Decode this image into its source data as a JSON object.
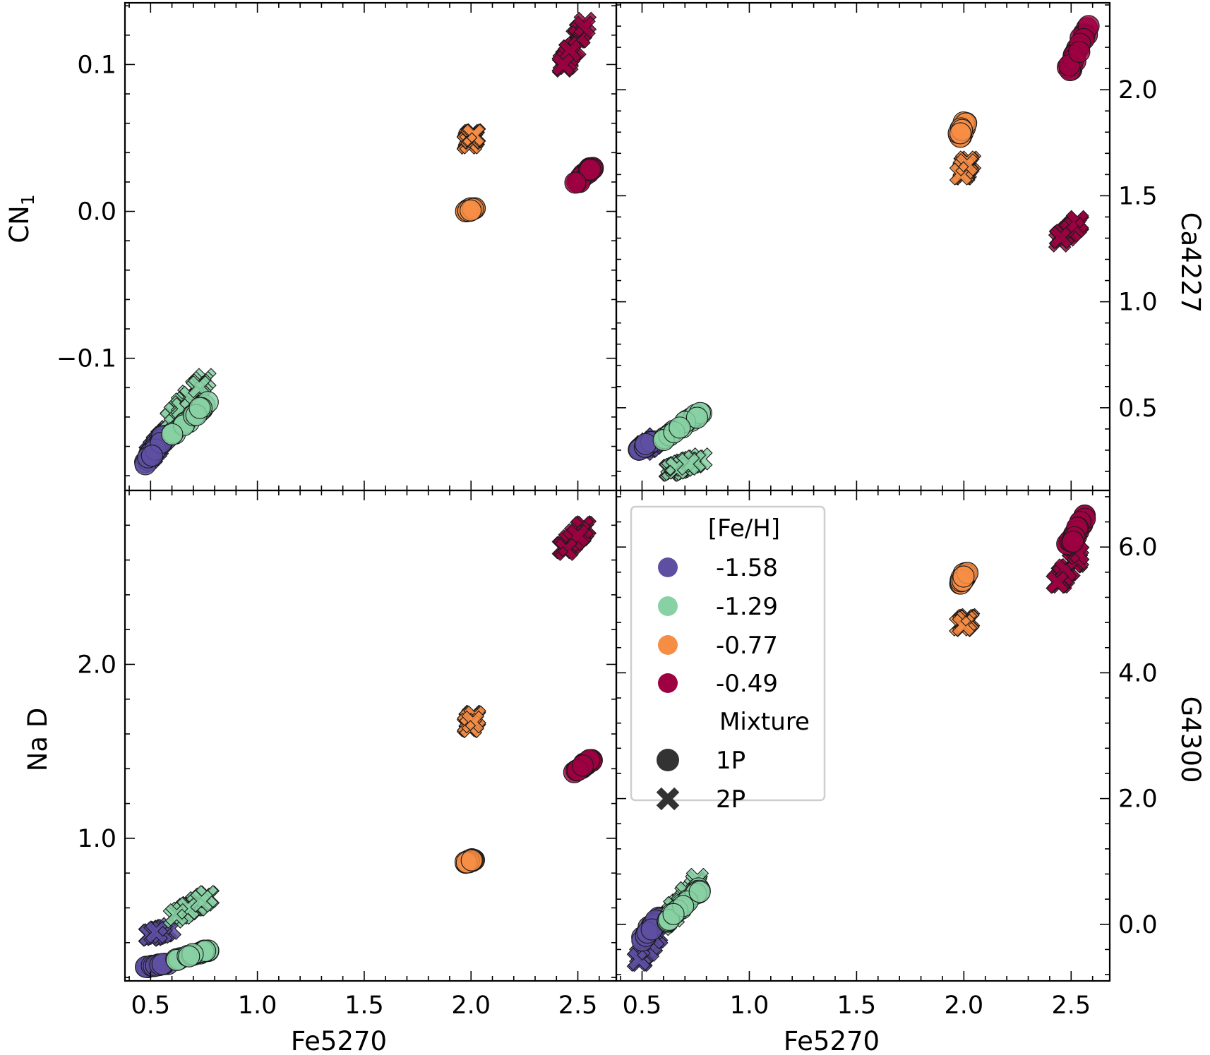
{
  "chart_data": {
    "type": "scatter",
    "legend": {
      "title": "[Fe/H]",
      "metallicities": [
        {
          "label": "-1.58",
          "color": "#5e4fa2"
        },
        {
          "label": "-1.29",
          "color": "#88d1a4"
        },
        {
          "label": "-0.77",
          "color": "#f68d45"
        },
        {
          "label": "-0.49",
          "color": "#9e0142"
        }
      ],
      "mixture_title": "Mixture",
      "mixtures": [
        {
          "label": "1P",
          "marker": "circle"
        },
        {
          "label": "2P",
          "marker": "x"
        }
      ],
      "placement": "inside lower-right panel, upper-left"
    },
    "x_axis": {
      "label": "Fe5270",
      "xlim": [
        0.38,
        2.68
      ],
      "ticks": [
        0.5,
        1.0,
        1.5,
        2.0,
        2.5
      ],
      "tick_labels": [
        "0.5",
        "1.0",
        "1.5",
        "2.0",
        "2.5"
      ]
    },
    "panels": [
      {
        "id": "top-left",
        "ylabel": "CN",
        "ylabel_sub": "1",
        "ylabel_side": "left",
        "ylim": [
          -0.19,
          0.142
        ],
        "yticks": [
          -0.1,
          0.0,
          0.1
        ],
        "ytick_labels": [
          "−0.1",
          "0.0",
          "0.1"
        ],
        "series": [
          {
            "feh": "-1.58",
            "mixture": "1P",
            "x": [
              0.47,
              0.57
            ],
            "y": [
              -0.172,
              -0.152
            ]
          },
          {
            "feh": "-1.58",
            "mixture": "2P",
            "x": [
              0.48,
              0.58
            ],
            "y": [
              -0.17,
              -0.15
            ]
          },
          {
            "feh": "-1.29",
            "mixture": "1P",
            "x": [
              0.6,
              0.77
            ],
            "y": [
              -0.152,
              -0.13
            ]
          },
          {
            "feh": "-1.29",
            "mixture": "2P",
            "x": [
              0.6,
              0.78
            ],
            "y": [
              -0.142,
              -0.11
            ]
          },
          {
            "feh": "-0.77",
            "mixture": "1P",
            "x": [
              1.98,
              2.01
            ],
            "y": [
              0.0,
              0.002
            ]
          },
          {
            "feh": "-0.77",
            "mixture": "2P",
            "x": [
              1.99,
              2.01
            ],
            "y": [
              0.046,
              0.052
            ]
          },
          {
            "feh": "-0.49",
            "mixture": "1P",
            "x": [
              2.49,
              2.57
            ],
            "y": [
              0.019,
              0.03
            ]
          },
          {
            "feh": "-0.49",
            "mixture": "2P",
            "x": [
              2.43,
              2.53
            ],
            "y": [
              0.097,
              0.128
            ]
          }
        ]
      },
      {
        "id": "top-right",
        "ylabel": "Ca4227",
        "ylabel_side": "right",
        "ylim": [
          0.11,
          2.41
        ],
        "yticks": [
          0.5,
          1.0,
          1.5,
          2.0
        ],
        "ytick_labels": [
          "0.5",
          "1.0",
          "1.5",
          "2.0"
        ],
        "series": [
          {
            "feh": "-1.58",
            "mixture": "1P",
            "x": [
              0.48,
              0.56
            ],
            "y": [
              0.3,
              0.35
            ]
          },
          {
            "feh": "-1.58",
            "mixture": "2P",
            "x": [
              0.5,
              0.58
            ],
            "y": [
              0.3,
              0.36
            ]
          },
          {
            "feh": "-1.29",
            "mixture": "1P",
            "x": [
              0.6,
              0.78
            ],
            "y": [
              0.35,
              0.48
            ]
          },
          {
            "feh": "-1.29",
            "mixture": "2P",
            "x": [
              0.62,
              0.78
            ],
            "y": [
              0.2,
              0.26
            ]
          },
          {
            "feh": "-0.77",
            "mixture": "1P",
            "x": [
              1.98,
              2.01
            ],
            "y": [
              1.78,
              1.85
            ]
          },
          {
            "feh": "-0.77",
            "mixture": "2P",
            "x": [
              1.99,
              2.02
            ],
            "y": [
              1.6,
              1.66
            ]
          },
          {
            "feh": "-0.49",
            "mixture": "1P",
            "x": [
              2.48,
              2.58
            ],
            "y": [
              2.07,
              2.3
            ]
          },
          {
            "feh": "-0.49",
            "mixture": "2P",
            "x": [
              2.43,
              2.54
            ],
            "y": [
              1.28,
              1.38
            ]
          }
        ]
      },
      {
        "id": "bottom-left",
        "ylabel": "Na D",
        "ylabel_side": "left",
        "ylim": [
          0.18,
          3.0
        ],
        "yticks": [
          1.0,
          2.0
        ],
        "ytick_labels": [
          "1.0",
          "2.0"
        ],
        "series": [
          {
            "feh": "-1.58",
            "mixture": "1P",
            "x": [
              0.48,
              0.58
            ],
            "y": [
              0.26,
              0.28
            ]
          },
          {
            "feh": "-1.58",
            "mixture": "2P",
            "x": [
              0.49,
              0.59
            ],
            "y": [
              0.44,
              0.48
            ]
          },
          {
            "feh": "-1.29",
            "mixture": "1P",
            "x": [
              0.62,
              0.78
            ],
            "y": [
              0.3,
              0.36
            ]
          },
          {
            "feh": "-1.29",
            "mixture": "2P",
            "x": [
              0.62,
              0.78
            ],
            "y": [
              0.55,
              0.67
            ]
          },
          {
            "feh": "-0.77",
            "mixture": "1P",
            "x": [
              1.98,
              2.01
            ],
            "y": [
              0.86,
              0.88
            ]
          },
          {
            "feh": "-0.77",
            "mixture": "2P",
            "x": [
              1.99,
              2.01
            ],
            "y": [
              1.64,
              1.7
            ]
          },
          {
            "feh": "-0.49",
            "mixture": "1P",
            "x": [
              2.49,
              2.57
            ],
            "y": [
              1.38,
              1.46
            ]
          },
          {
            "feh": "-0.49",
            "mixture": "2P",
            "x": [
              2.43,
              2.54
            ],
            "y": [
              2.65,
              2.8
            ]
          }
        ]
      },
      {
        "id": "bottom-right",
        "ylabel": "G4300",
        "ylabel_side": "right",
        "ylim": [
          -0.9,
          6.9
        ],
        "yticks": [
          0.0,
          2.0,
          4.0,
          6.0
        ],
        "ytick_labels": [
          "0.0",
          "2.0",
          "4.0",
          "6.0"
        ],
        "series": [
          {
            "feh": "-1.58",
            "mixture": "1P",
            "x": [
              0.48,
              0.58
            ],
            "y": [
              -0.3,
              0.1
            ]
          },
          {
            "feh": "-1.58",
            "mixture": "2P",
            "x": [
              0.48,
              0.58
            ],
            "y": [
              -0.6,
              -0.1
            ]
          },
          {
            "feh": "-1.29",
            "mixture": "1P",
            "x": [
              0.6,
              0.78
            ],
            "y": [
              0.0,
              0.6
            ]
          },
          {
            "feh": "-1.29",
            "mixture": "2P",
            "x": [
              0.6,
              0.78
            ],
            "y": [
              0.0,
              0.75
            ]
          },
          {
            "feh": "-0.77",
            "mixture": "1P",
            "x": [
              1.98,
              2.01
            ],
            "y": [
              5.4,
              5.6
            ]
          },
          {
            "feh": "-0.77",
            "mixture": "2P",
            "x": [
              1.99,
              2.02
            ],
            "y": [
              4.75,
              4.85
            ]
          },
          {
            "feh": "-0.49",
            "mixture": "1P",
            "x": [
              2.48,
              2.58
            ],
            "y": [
              6.0,
              6.55
            ]
          },
          {
            "feh": "-0.49",
            "mixture": "2P",
            "x": [
              2.43,
              2.54
            ],
            "y": [
              5.4,
              5.9
            ]
          }
        ]
      }
    ]
  }
}
